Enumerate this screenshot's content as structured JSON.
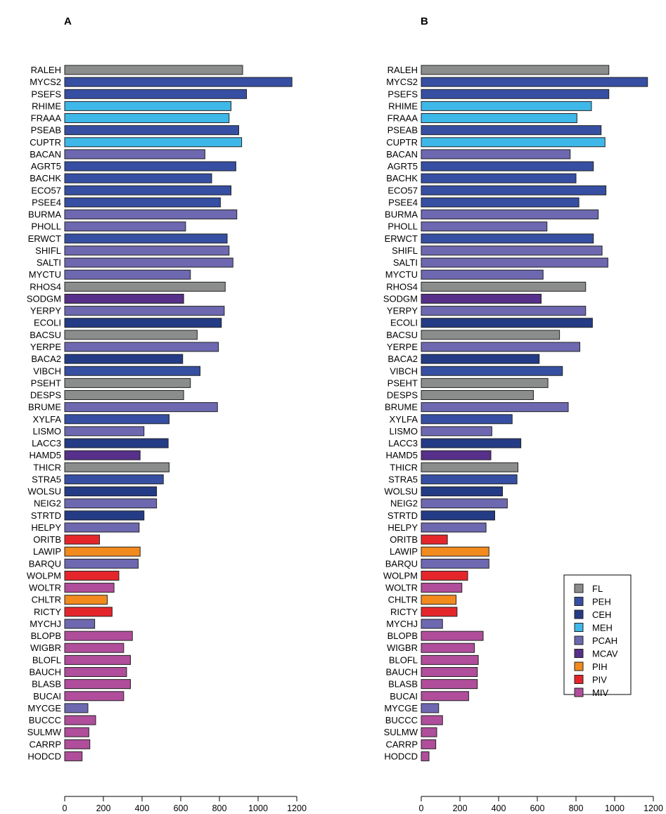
{
  "panels": [
    "A",
    "B"
  ],
  "chart_data": {
    "type": "bar",
    "orientation": "horizontal",
    "xlim": [
      0,
      1200
    ],
    "xticks": [
      0,
      200,
      400,
      600,
      800,
      1000,
      1200
    ],
    "categories": [
      "RALEH",
      "MYCS2",
      "PSEFS",
      "RHIME",
      "FRAAA",
      "PSEAB",
      "CUPTR",
      "BACAN",
      "AGRT5",
      "BACHK",
      "ECO57",
      "PSEE4",
      "BURMA",
      "PHOLL",
      "ERWCT",
      "SHIFL",
      "SALTI",
      "MYCTU",
      "RHOS4",
      "SODGM",
      "YERPY",
      "ECOLI",
      "BACSU",
      "YERPE",
      "BACA2",
      "VIBCH",
      "PSEHT",
      "DESPS",
      "BRUME",
      "XYLFA",
      "LISMO",
      "LACC3",
      "HAMD5",
      "THICR",
      "STRA5",
      "WOLSU",
      "NEIG2",
      "STRTD",
      "HELPY",
      "ORITB",
      "LAWIP",
      "BARQU",
      "WOLPM",
      "WOLTR",
      "CHLTR",
      "RICTY",
      "MYCHJ",
      "BLOPB",
      "WIGBR",
      "BLOFL",
      "BAUCH",
      "BLASB",
      "BUCAI",
      "MYCGE",
      "BUCCC",
      "SULMW",
      "CARRP",
      "HODCD"
    ],
    "groups": [
      "FL",
      "PEH",
      "PEH",
      "MEH",
      "MEH",
      "PEH",
      "MEH",
      "PCAH",
      "PEH",
      "PEH",
      "PEH",
      "PEH",
      "PCAH",
      "PCAH",
      "PEH",
      "PCAH",
      "PCAH",
      "PCAH",
      "FL",
      "MCAV",
      "PCAH",
      "CEH",
      "FL",
      "PCAH",
      "CEH",
      "PEH",
      "FL",
      "FL",
      "PCAH",
      "PEH",
      "PCAH",
      "CEH",
      "MCAV",
      "FL",
      "PEH",
      "CEH",
      "PCAH",
      "CEH",
      "PCAH",
      "PIV",
      "PIH",
      "PCAH",
      "PIV",
      "MIV",
      "PIH",
      "PIV",
      "PCAH",
      "MIV",
      "MIV",
      "MIV",
      "MIV",
      "MIV",
      "MIV",
      "PCAH",
      "MIV",
      "MIV",
      "MIV",
      "MIV"
    ],
    "series": [
      {
        "values": [
          920,
          1175,
          940,
          860,
          850,
          900,
          915,
          725,
          885,
          760,
          860,
          805,
          890,
          625,
          840,
          850,
          870,
          650,
          830,
          615,
          825,
          810,
          685,
          795,
          610,
          700,
          650,
          615,
          790,
          540,
          410,
          535,
          390,
          540,
          510,
          475,
          475,
          410,
          385,
          180,
          390,
          380,
          280,
          255,
          220,
          245,
          155,
          350,
          305,
          340,
          320,
          340,
          305,
          120,
          160,
          125,
          130,
          90
        ]
      },
      {
        "values": [
          970,
          1170,
          970,
          880,
          805,
          930,
          950,
          770,
          890,
          800,
          955,
          815,
          915,
          650,
          890,
          935,
          965,
          630,
          850,
          620,
          850,
          885,
          715,
          820,
          610,
          730,
          655,
          580,
          760,
          470,
          365,
          515,
          360,
          500,
          495,
          420,
          445,
          380,
          335,
          135,
          350,
          350,
          240,
          210,
          180,
          185,
          110,
          320,
          275,
          295,
          290,
          290,
          245,
          90,
          110,
          80,
          75,
          40
        ]
      }
    ],
    "legend": {
      "position": "bottom-right of panel B",
      "entries": [
        {
          "label": "FL",
          "color": "#8A8D8C"
        },
        {
          "label": "PEH",
          "color": "#364FA2"
        },
        {
          "label": "CEH",
          "color": "#243B86"
        },
        {
          "label": "MEH",
          "color": "#3EB8E8"
        },
        {
          "label": "PCAH",
          "color": "#6D68B0"
        },
        {
          "label": "MCAV",
          "color": "#56308A"
        },
        {
          "label": "PIH",
          "color": "#F28A1E"
        },
        {
          "label": "PIV",
          "color": "#E4262B"
        },
        {
          "label": "MIV",
          "color": "#B04E9B"
        }
      ]
    },
    "grid": false
  }
}
